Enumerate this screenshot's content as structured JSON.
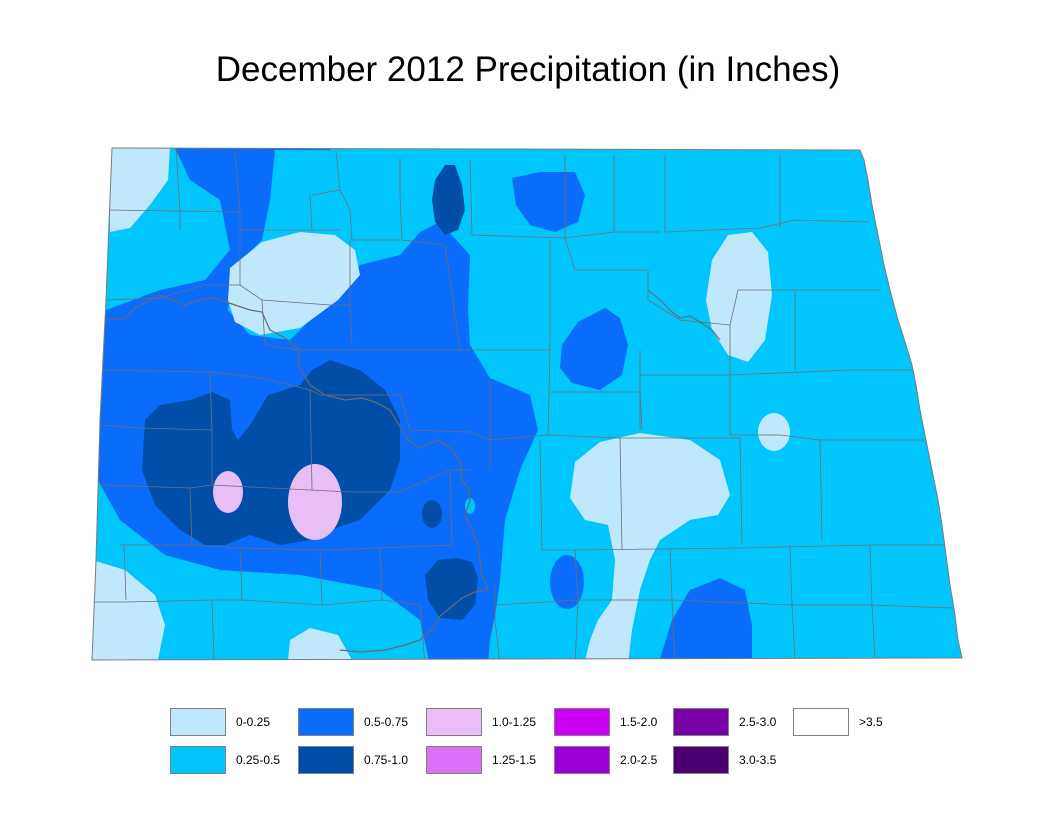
{
  "title": "December 2012 Precipitation (in Inches)",
  "map": {
    "region": "North Dakota",
    "colors": {
      "border": "#7a7a7a",
      "county_lines": "#6f6f6f",
      "river": "#6a6a6a"
    }
  },
  "legend": [
    {
      "label": "0-0.25",
      "color": "#bfe8fd"
    },
    {
      "label": "0.25-0.5",
      "color": "#00c6fd"
    },
    {
      "label": "0.5-0.75",
      "color": "#0a6cfb"
    },
    {
      "label": "0.75-1.0",
      "color": "#004ea8"
    },
    {
      "label": "1.0-1.25",
      "color": "#e8bdf8"
    },
    {
      "label": "1.25-1.5",
      "color": "#db6ff8"
    },
    {
      "label": "1.5-2.0",
      "color": "#cc00f5"
    },
    {
      "label": "2.0-2.5",
      "color": "#9b00d4"
    },
    {
      "label": "2.5-3.0",
      "color": "#7a00a8"
    },
    {
      "label": "3.0-3.5",
      "color": "#4a0070"
    },
    {
      "label": ">3.5",
      "color": "#ffffff"
    }
  ]
}
